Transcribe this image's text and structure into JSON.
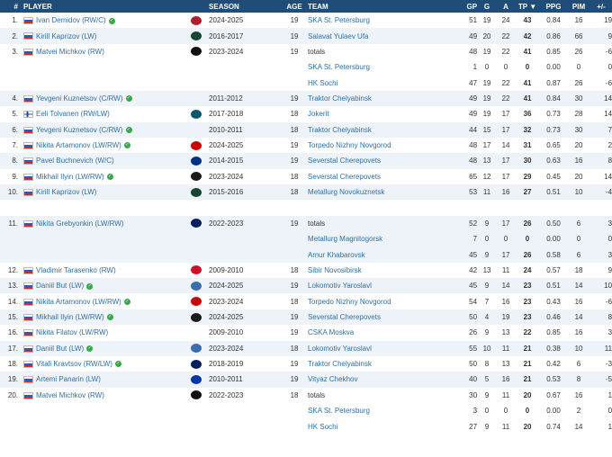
{
  "headers": [
    "#",
    "PLAYER",
    "SEASON",
    "AGE",
    "TEAM",
    "GP",
    "G",
    "A",
    "TP",
    "PPG",
    "PIM",
    "+/-"
  ],
  "sort_icon": "sort-down-icon",
  "team_logo_colors": {
    "montreal": "#af1e2d",
    "minnesota": "#154734",
    "philadelphia": "#111111",
    "seattle": "#0e5769",
    "carolina": "#cc0000",
    "stlouis": "#002f87",
    "pittsburgh": "#1a1a1a",
    "toronto": "#00205b",
    "detroit": "#ce1126",
    "ahl": "#3b6bb0",
    "vancouver": "#00205b",
    "nyr": "#0038a8"
  },
  "rows": [
    {
      "rank": "1.",
      "flag": "ru",
      "player": "Ivan Demidov (RW/C)",
      "badge": true,
      "logo": "montreal",
      "season": "2024-2025",
      "age": "19",
      "team": "SKA St. Petersburg",
      "team_link": true,
      "gp": "51",
      "g": "19",
      "a": "24",
      "tp": "43",
      "ppg": "0.84",
      "pim": "16",
      "pm": "19"
    },
    {
      "rank": "2.",
      "flag": "ru",
      "player": "Kirill Kaprizov (LW)",
      "badge": false,
      "logo": "minnesota",
      "season": "2016-2017",
      "age": "19",
      "team": "Salavat Yulaev Ufa",
      "team_link": true,
      "gp": "49",
      "g": "20",
      "a": "22",
      "tp": "42",
      "ppg": "0.86",
      "pim": "66",
      "pm": "9"
    },
    {
      "rank": "3.",
      "flag": "ru",
      "player": "Matvei Michkov (RW)",
      "badge": false,
      "logo": "philadelphia",
      "season": "2023-2024",
      "age": "19",
      "team": "totals",
      "team_link": false,
      "gp": "48",
      "g": "19",
      "a": "22",
      "tp": "41",
      "ppg": "0.85",
      "pim": "26",
      "pm": "-6"
    },
    {
      "rank": "",
      "flag": "",
      "player": "",
      "badge": false,
      "logo": "",
      "season": "",
      "age": "",
      "team": "SKA St. Petersburg",
      "team_link": true,
      "gp": "1",
      "g": "0",
      "a": "0",
      "tp": "0",
      "ppg": "0.00",
      "pim": "0",
      "pm": "0"
    },
    {
      "rank": "",
      "flag": "",
      "player": "",
      "badge": false,
      "logo": "",
      "season": "",
      "age": "",
      "team": "HK Sochi",
      "team_link": true,
      "gp": "47",
      "g": "19",
      "a": "22",
      "tp": "41",
      "ppg": "0.87",
      "pim": "26",
      "pm": "-6"
    },
    {
      "rank": "4.",
      "flag": "ru",
      "player": "Yevgeni Kuznetsov (C/RW)",
      "badge": true,
      "logo": "",
      "season": "2011-2012",
      "age": "19",
      "team": "Traktor Chelyabinsk",
      "team_link": true,
      "gp": "49",
      "g": "19",
      "a": "22",
      "tp": "41",
      "ppg": "0.84",
      "pim": "30",
      "pm": "14"
    },
    {
      "rank": "5.",
      "flag": "fi",
      "player": "Eeli Tolvanen (RW/LW)",
      "badge": false,
      "logo": "seattle",
      "season": "2017-2018",
      "age": "18",
      "team": "Jokerit",
      "team_link": true,
      "gp": "49",
      "g": "19",
      "a": "17",
      "tp": "36",
      "ppg": "0.73",
      "pim": "28",
      "pm": "14"
    },
    {
      "rank": "6.",
      "flag": "ru",
      "player": "Yevgeni Kuznetsov (C/RW)",
      "badge": true,
      "logo": "",
      "season": "2010-2011",
      "age": "18",
      "team": "Traktor Chelyabinsk",
      "team_link": true,
      "gp": "44",
      "g": "15",
      "a": "17",
      "tp": "32",
      "ppg": "0.73",
      "pim": "30",
      "pm": "7"
    },
    {
      "rank": "7.",
      "flag": "ru",
      "player": "Nikita Artamonov (LW/RW)",
      "badge": true,
      "logo": "carolina",
      "season": "2024-2025",
      "age": "19",
      "team": "Torpedo Nizhny Novgorod",
      "team_link": true,
      "gp": "48",
      "g": "17",
      "a": "14",
      "tp": "31",
      "ppg": "0.65",
      "pim": "20",
      "pm": "2"
    },
    {
      "rank": "8.",
      "flag": "ru",
      "player": "Pavel Buchnevich (W/C)",
      "badge": false,
      "logo": "stlouis",
      "season": "2014-2015",
      "age": "19",
      "team": "Severstal Cherepovets",
      "team_link": true,
      "gp": "48",
      "g": "13",
      "a": "17",
      "tp": "30",
      "ppg": "0.63",
      "pim": "16",
      "pm": "8"
    },
    {
      "rank": "9.",
      "flag": "ru",
      "player": "Mikhail Ilyin (LW/RW)",
      "badge": true,
      "logo": "pittsburgh",
      "season": "2023-2024",
      "age": "18",
      "team": "Severstal Cherepovets",
      "team_link": true,
      "gp": "65",
      "g": "12",
      "a": "17",
      "tp": "29",
      "ppg": "0.45",
      "pim": "20",
      "pm": "14"
    },
    {
      "rank": "10.",
      "flag": "ru",
      "player": "Kirill Kaprizov (LW)",
      "badge": false,
      "logo": "minnesota",
      "season": "2015-2016",
      "age": "18",
      "team": "Metallurg Novokuznetsk",
      "team_link": true,
      "gp": "53",
      "g": "11",
      "a": "16",
      "tp": "27",
      "ppg": "0.51",
      "pim": "10",
      "pm": "-4"
    },
    {
      "rank": "",
      "flag": "",
      "player": "",
      "badge": false,
      "logo": "",
      "season": "",
      "age": "",
      "team": "",
      "team_link": false,
      "gp": "",
      "g": "",
      "a": "",
      "tp": "",
      "ppg": "",
      "pim": "",
      "pm": ""
    },
    {
      "rank": "11.",
      "flag": "ru",
      "player": "Nikita Grebyonkin (LW/RW)",
      "badge": false,
      "logo": "toronto",
      "season": "2022-2023",
      "age": "19",
      "team": "totals",
      "team_link": false,
      "gp": "52",
      "g": "9",
      "a": "17",
      "tp": "26",
      "ppg": "0.50",
      "pim": "6",
      "pm": "3"
    },
    {
      "rank": "",
      "flag": "",
      "player": "",
      "badge": false,
      "logo": "",
      "season": "",
      "age": "",
      "team": "Metallurg Magnitogorsk",
      "team_link": true,
      "gp": "7",
      "g": "0",
      "a": "0",
      "tp": "0",
      "ppg": "0.00",
      "pim": "0",
      "pm": "0"
    },
    {
      "rank": "",
      "flag": "",
      "player": "",
      "badge": false,
      "logo": "",
      "season": "",
      "age": "",
      "team": "Amur Khabarovsk",
      "team_link": true,
      "gp": "45",
      "g": "9",
      "a": "17",
      "tp": "26",
      "ppg": "0.58",
      "pim": "6",
      "pm": "3"
    },
    {
      "rank": "12.",
      "flag": "ru",
      "player": "Vladimir Tarasenko (RW)",
      "badge": false,
      "logo": "detroit",
      "season": "2009-2010",
      "age": "18",
      "team": "Sibir Novosibirsk",
      "team_link": true,
      "gp": "42",
      "g": "13",
      "a": "11",
      "tp": "24",
      "ppg": "0.57",
      "pim": "18",
      "pm": "9"
    },
    {
      "rank": "13.",
      "flag": "ru",
      "player": "Daniil But (LW)",
      "badge": true,
      "logo": "ahl",
      "season": "2024-2025",
      "age": "19",
      "team": "Lokomotiv Yaroslavl",
      "team_link": true,
      "gp": "45",
      "g": "9",
      "a": "14",
      "tp": "23",
      "ppg": "0.51",
      "pim": "14",
      "pm": "10"
    },
    {
      "rank": "14.",
      "flag": "ru",
      "player": "Nikita Artamonov (LW/RW)",
      "badge": true,
      "logo": "carolina",
      "season": "2023-2024",
      "age": "18",
      "team": "Torpedo Nizhny Novgorod",
      "team_link": true,
      "gp": "54",
      "g": "7",
      "a": "16",
      "tp": "23",
      "ppg": "0.43",
      "pim": "16",
      "pm": "-6"
    },
    {
      "rank": "15.",
      "flag": "ru",
      "player": "Mikhail Ilyin (LW/RW)",
      "badge": true,
      "logo": "pittsburgh",
      "season": "2024-2025",
      "age": "19",
      "team": "Severstal Cherepovets",
      "team_link": true,
      "gp": "50",
      "g": "4",
      "a": "19",
      "tp": "23",
      "ppg": "0.46",
      "pim": "14",
      "pm": "8"
    },
    {
      "rank": "16.",
      "flag": "ru",
      "player": "Nikita Filatov (LW/RW)",
      "badge": false,
      "logo": "",
      "season": "2009-2010",
      "age": "19",
      "team": "CSKA Moskva",
      "team_link": true,
      "gp": "26",
      "g": "9",
      "a": "13",
      "tp": "22",
      "ppg": "0.85",
      "pim": "16",
      "pm": "3"
    },
    {
      "rank": "17.",
      "flag": "ru",
      "player": "Daniil But (LW)",
      "badge": true,
      "logo": "ahl",
      "season": "2023-2024",
      "age": "18",
      "team": "Lokomotiv Yaroslavl",
      "team_link": true,
      "gp": "55",
      "g": "10",
      "a": "11",
      "tp": "21",
      "ppg": "0.38",
      "pim": "10",
      "pm": "11"
    },
    {
      "rank": "18.",
      "flag": "ru",
      "player": "Vitali Kravtsov (RW/LW)",
      "badge": true,
      "logo": "vancouver",
      "season": "2018-2019",
      "age": "19",
      "team": "Traktor Chelyabinsk",
      "team_link": true,
      "gp": "50",
      "g": "8",
      "a": "13",
      "tp": "21",
      "ppg": "0.42",
      "pim": "6",
      "pm": "-3"
    },
    {
      "rank": "19.",
      "flag": "ru",
      "player": "Artemi Panarin (LW)",
      "badge": false,
      "logo": "nyr",
      "season": "2010-2011",
      "age": "19",
      "team": "Vityaz Chekhov",
      "team_link": true,
      "gp": "40",
      "g": "5",
      "a": "16",
      "tp": "21",
      "ppg": "0.53",
      "pim": "8",
      "pm": "-5"
    },
    {
      "rank": "20.",
      "flag": "ru",
      "player": "Matvei Michkov (RW)",
      "badge": false,
      "logo": "philadelphia",
      "season": "2022-2023",
      "age": "18",
      "team": "totals",
      "team_link": false,
      "gp": "30",
      "g": "9",
      "a": "11",
      "tp": "20",
      "ppg": "0.67",
      "pim": "16",
      "pm": "1"
    },
    {
      "rank": "",
      "flag": "",
      "player": "",
      "badge": false,
      "logo": "",
      "season": "",
      "age": "",
      "team": "SKA St. Petersburg",
      "team_link": true,
      "gp": "3",
      "g": "0",
      "a": "0",
      "tp": "0",
      "ppg": "0.00",
      "pim": "2",
      "pm": "0"
    },
    {
      "rank": "",
      "flag": "",
      "player": "",
      "badge": false,
      "logo": "",
      "season": "",
      "age": "",
      "team": "HK Sochi",
      "team_link": true,
      "gp": "27",
      "g": "9",
      "a": "11",
      "tp": "20",
      "ppg": "0.74",
      "pim": "14",
      "pm": "1"
    }
  ]
}
